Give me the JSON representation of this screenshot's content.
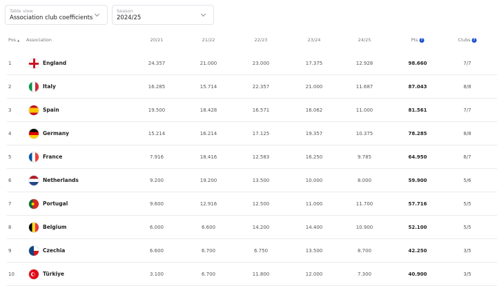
{
  "filters": {
    "table_view": {
      "label": "Table view",
      "value": "Association club coefficients"
    },
    "season": {
      "label": "Season",
      "value": "2024/25"
    }
  },
  "headers": {
    "pos": "Pos",
    "association": "Association",
    "s1": "20/21",
    "s2": "21/22",
    "s3": "22/23",
    "s4": "23/24",
    "s5": "24/25",
    "pts": "Pts",
    "clubs": "Clubs",
    "help_icon": "?",
    "sort_icon": "▲"
  },
  "rows": [
    {
      "pos": "1",
      "name": "England",
      "flag": "england",
      "s1": "24.357",
      "s2": "21.000",
      "s3": "23.000",
      "s4": "17.375",
      "s5": "12.928",
      "pts": "98.660",
      "clubs": "7/7"
    },
    {
      "pos": "2",
      "name": "Italy",
      "flag": "italy",
      "s1": "16.285",
      "s2": "15.714",
      "s3": "22.357",
      "s4": "21.000",
      "s5": "11.687",
      "pts": "87.043",
      "clubs": "8/8"
    },
    {
      "pos": "3",
      "name": "Spain",
      "flag": "spain",
      "s1": "19.500",
      "s2": "18.428",
      "s3": "16.571",
      "s4": "16.062",
      "s5": "11.000",
      "pts": "81.561",
      "clubs": "7/7"
    },
    {
      "pos": "4",
      "name": "Germany",
      "flag": "germany",
      "s1": "15.214",
      "s2": "16.214",
      "s3": "17.125",
      "s4": "19.357",
      "s5": "10.375",
      "pts": "78.285",
      "clubs": "8/8"
    },
    {
      "pos": "5",
      "name": "France",
      "flag": "france",
      "s1": "7.916",
      "s2": "18.416",
      "s3": "12.583",
      "s4": "16.250",
      "s5": "9.785",
      "pts": "64.950",
      "clubs": "6/7"
    },
    {
      "pos": "6",
      "name": "Netherlands",
      "flag": "netherlands",
      "s1": "9.200",
      "s2": "19.200",
      "s3": "13.500",
      "s4": "10.000",
      "s5": "8.000",
      "pts": "59.900",
      "clubs": "5/6"
    },
    {
      "pos": "7",
      "name": "Portugal",
      "flag": "portugal",
      "s1": "9.600",
      "s2": "12.916",
      "s3": "12.500",
      "s4": "11.000",
      "s5": "11.700",
      "pts": "57.716",
      "clubs": "5/5"
    },
    {
      "pos": "8",
      "name": "Belgium",
      "flag": "belgium",
      "s1": "6.000",
      "s2": "6.600",
      "s3": "14.200",
      "s4": "14.400",
      "s5": "10.900",
      "pts": "52.100",
      "clubs": "5/5"
    },
    {
      "pos": "9",
      "name": "Czechia",
      "flag": "czechia",
      "s1": "6.600",
      "s2": "6.700",
      "s3": "6.750",
      "s4": "13.500",
      "s5": "8.700",
      "pts": "42.250",
      "clubs": "3/5"
    },
    {
      "pos": "10",
      "name": "Türkiye",
      "flag": "turkiye",
      "s1": "3.100",
      "s2": "6.700",
      "s3": "11.800",
      "s4": "12.000",
      "s5": "7.300",
      "pts": "40.900",
      "clubs": "3/5"
    }
  ]
}
